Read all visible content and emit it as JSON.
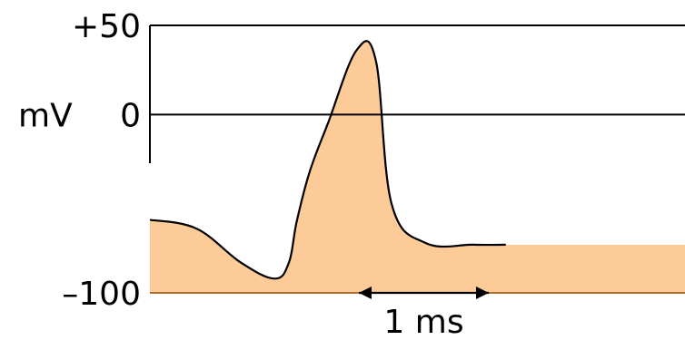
{
  "colors": {
    "fill": "#fccb98",
    "line": "#000000",
    "background": "#ffffff"
  },
  "chart_data": {
    "type": "line",
    "title": "",
    "xlabel": "",
    "ylabel": "mV",
    "ylim": [
      -100,
      50
    ],
    "yticks": [
      {
        "value": 50,
        "label": "+50"
      },
      {
        "value": 0,
        "label": "0"
      },
      {
        "value": -100,
        "label": "–100"
      }
    ],
    "grid": "horizontal lines at +50 and 0",
    "scale_bar": {
      "label": "1 ms",
      "duration_ms": 1
    },
    "x_unit": "ms",
    "series": [
      {
        "x": [
          0,
          0.36,
          0.7,
          0.96,
          1.07,
          1.13,
          1.23,
          1.37,
          1.59,
          1.74,
          1.86,
          2.12,
          2.49,
          2.74
        ],
        "y": [
          -59,
          -64,
          -83,
          -92,
          -83,
          -60,
          -32,
          -5,
          36,
          30,
          -50,
          -72,
          -73,
          -73
        ]
      }
    ]
  }
}
